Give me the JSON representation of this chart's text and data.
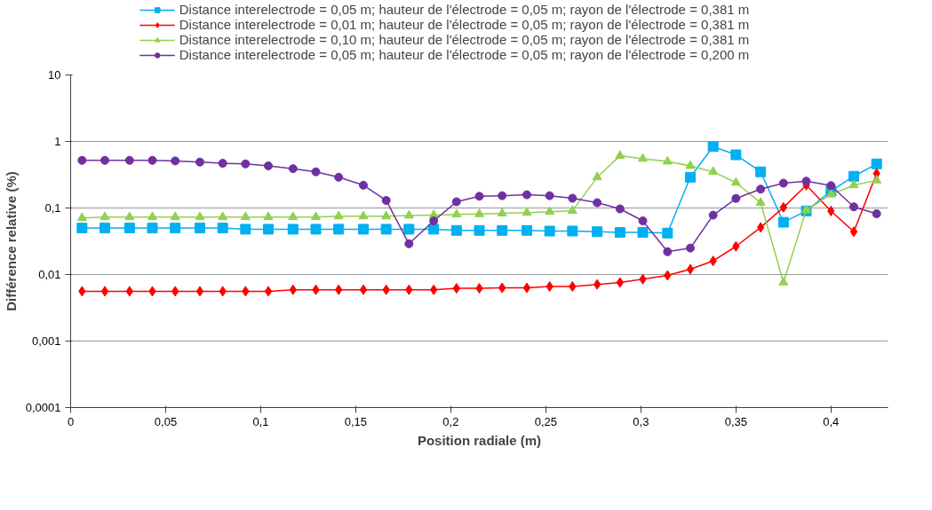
{
  "chart_data": {
    "type": "line",
    "xlabel": "Position radiale (m)",
    "ylabel": "Différence relative (%)",
    "log": "y",
    "grid": "y",
    "legend": "top",
    "line_style": "solid",
    "x": [
      0.006,
      0.018,
      0.031,
      0.043,
      0.055,
      0.068,
      0.08,
      0.092,
      0.104,
      0.117,
      0.129,
      0.141,
      0.154,
      0.166,
      0.178,
      0.191,
      0.203,
      0.215,
      0.227,
      0.24,
      0.252,
      0.264,
      0.277,
      0.289,
      0.301,
      0.314,
      0.326,
      0.338,
      0.35,
      0.363,
      0.375,
      0.387,
      0.4,
      0.412,
      0.424
    ],
    "xlim": [
      0,
      0.43
    ],
    "xticks": [
      0,
      {
        "value": 0.05,
        "label": "0,05"
      },
      {
        "value": 0.1,
        "label": "0,1"
      },
      {
        "value": 0.15,
        "label": "0,15"
      },
      {
        "value": 0.2,
        "label": "0,2"
      },
      {
        "value": 0.25,
        "label": "0,25"
      },
      {
        "value": 0.3,
        "label": "0,3"
      },
      {
        "value": 0.35,
        "label": "0,35"
      },
      {
        "value": 0.4,
        "label": "0,4"
      }
    ],
    "ylim": [
      0.0001,
      10
    ],
    "yticks": [
      {
        "value": 0.0001,
        "label": "0,0001"
      },
      {
        "value": 0.001,
        "label": "0,001"
      },
      {
        "value": 0.01,
        "label": "0,01"
      },
      {
        "value": 0.1,
        "label": "0,1"
      },
      1,
      10
    ],
    "series": [
      {
        "name": "Distance interelectrode = 0,05 m; hauteur de l'électrode = 0,05 m; rayon de l'électrode = 0,381 m",
        "color": "#00b0f0",
        "marker": "square",
        "values": [
          0.05,
          0.05,
          0.05,
          0.05,
          0.05,
          0.05,
          0.05,
          0.048,
          0.048,
          0.048,
          0.048,
          0.048,
          0.048,
          0.048,
          0.048,
          0.048,
          0.046,
          0.046,
          0.046,
          0.046,
          0.045,
          0.045,
          0.044,
          0.043,
          0.043,
          0.042,
          0.29,
          0.84,
          0.63,
          0.35,
          0.061,
          0.09,
          0.18,
          0.3,
          0.46
        ]
      },
      {
        "name": "Distance interelectrode = 0,01 m; hauteur de l'électrode = 0,05 m; rayon de l'électrode = 0,381 m",
        "color": "#ff0000",
        "marker": "diamond",
        "values": [
          0.0056,
          0.0056,
          0.0056,
          0.0056,
          0.0056,
          0.0056,
          0.0056,
          0.0056,
          0.0056,
          0.0059,
          0.0059,
          0.0059,
          0.0059,
          0.0059,
          0.0059,
          0.0059,
          0.0062,
          0.0062,
          0.0063,
          0.0063,
          0.0066,
          0.0066,
          0.0071,
          0.0076,
          0.0085,
          0.0097,
          0.012,
          0.016,
          0.0265,
          0.051,
          0.102,
          0.22,
          0.09,
          0.044,
          0.33
        ]
      },
      {
        "name": "Distance interelectrode = 0,10 m; hauteur de l'électrode = 0,05 m; rayon de l'électrode = 0,381 m",
        "color": "#92d050",
        "marker": "triangle",
        "values": [
          0.071,
          0.073,
          0.073,
          0.073,
          0.073,
          0.073,
          0.073,
          0.073,
          0.073,
          0.073,
          0.073,
          0.075,
          0.075,
          0.075,
          0.077,
          0.078,
          0.08,
          0.081,
          0.083,
          0.085,
          0.088,
          0.091,
          0.29,
          0.61,
          0.55,
          0.5,
          0.43,
          0.35,
          0.24,
          0.12,
          0.0076,
          0.093,
          0.16,
          0.22,
          0.26
        ]
      },
      {
        "name": "Distance interelectrode = 0,05 m; hauteur de l'électrode = 0,05 m; rayon de l'électrode = 0,200 m",
        "color": "#7030a0",
        "marker": "circle",
        "values": [
          0.52,
          0.52,
          0.52,
          0.52,
          0.51,
          0.49,
          0.47,
          0.46,
          0.43,
          0.39,
          0.35,
          0.29,
          0.22,
          0.13,
          0.029,
          0.064,
          0.124,
          0.15,
          0.153,
          0.158,
          0.153,
          0.14,
          0.12,
          0.097,
          0.064,
          0.022,
          0.025,
          0.078,
          0.139,
          0.192,
          0.236,
          0.253,
          0.217,
          0.104,
          0.082
        ]
      }
    ]
  }
}
